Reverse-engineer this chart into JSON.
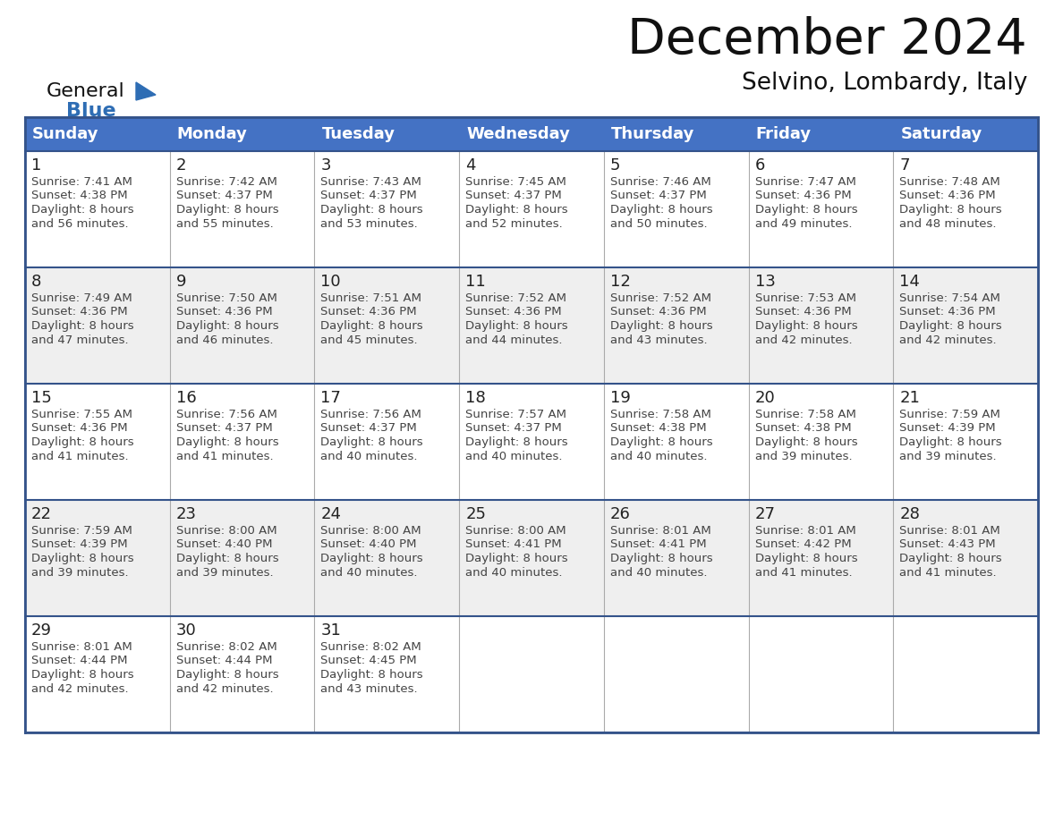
{
  "title": "December 2024",
  "subtitle": "Selvino, Lombardy, Italy",
  "header_color": "#4472C4",
  "header_text_color": "#FFFFFF",
  "cell_bg_color": "#FFFFFF",
  "alt_row_bg": "#EFEFEF",
  "border_color": "#34538A",
  "grid_color": "#AAAAAA",
  "day_headers": [
    "Sunday",
    "Monday",
    "Tuesday",
    "Wednesday",
    "Thursday",
    "Friday",
    "Saturday"
  ],
  "title_color": "#111111",
  "subtitle_color": "#111111",
  "day_number_color": "#222222",
  "cell_text_color": "#444444",
  "logo_general_color": "#111111",
  "logo_blue_color": "#2E6DB4",
  "logo_triangle_color": "#2E6DB4",
  "calendar_data": [
    [
      {
        "day": 1,
        "sunrise": "7:41 AM",
        "sunset": "4:38 PM",
        "daylight_hours": 8,
        "daylight_mins": "56 minutes."
      },
      {
        "day": 2,
        "sunrise": "7:42 AM",
        "sunset": "4:37 PM",
        "daylight_hours": 8,
        "daylight_mins": "55 minutes."
      },
      {
        "day": 3,
        "sunrise": "7:43 AM",
        "sunset": "4:37 PM",
        "daylight_hours": 8,
        "daylight_mins": "53 minutes."
      },
      {
        "day": 4,
        "sunrise": "7:45 AM",
        "sunset": "4:37 PM",
        "daylight_hours": 8,
        "daylight_mins": "52 minutes."
      },
      {
        "day": 5,
        "sunrise": "7:46 AM",
        "sunset": "4:37 PM",
        "daylight_hours": 8,
        "daylight_mins": "50 minutes."
      },
      {
        "day": 6,
        "sunrise": "7:47 AM",
        "sunset": "4:36 PM",
        "daylight_hours": 8,
        "daylight_mins": "49 minutes."
      },
      {
        "day": 7,
        "sunrise": "7:48 AM",
        "sunset": "4:36 PM",
        "daylight_hours": 8,
        "daylight_mins": "48 minutes."
      }
    ],
    [
      {
        "day": 8,
        "sunrise": "7:49 AM",
        "sunset": "4:36 PM",
        "daylight_hours": 8,
        "daylight_mins": "47 minutes."
      },
      {
        "day": 9,
        "sunrise": "7:50 AM",
        "sunset": "4:36 PM",
        "daylight_hours": 8,
        "daylight_mins": "46 minutes."
      },
      {
        "day": 10,
        "sunrise": "7:51 AM",
        "sunset": "4:36 PM",
        "daylight_hours": 8,
        "daylight_mins": "45 minutes."
      },
      {
        "day": 11,
        "sunrise": "7:52 AM",
        "sunset": "4:36 PM",
        "daylight_hours": 8,
        "daylight_mins": "44 minutes."
      },
      {
        "day": 12,
        "sunrise": "7:52 AM",
        "sunset": "4:36 PM",
        "daylight_hours": 8,
        "daylight_mins": "43 minutes."
      },
      {
        "day": 13,
        "sunrise": "7:53 AM",
        "sunset": "4:36 PM",
        "daylight_hours": 8,
        "daylight_mins": "42 minutes."
      },
      {
        "day": 14,
        "sunrise": "7:54 AM",
        "sunset": "4:36 PM",
        "daylight_hours": 8,
        "daylight_mins": "42 minutes."
      }
    ],
    [
      {
        "day": 15,
        "sunrise": "7:55 AM",
        "sunset": "4:36 PM",
        "daylight_hours": 8,
        "daylight_mins": "41 minutes."
      },
      {
        "day": 16,
        "sunrise": "7:56 AM",
        "sunset": "4:37 PM",
        "daylight_hours": 8,
        "daylight_mins": "41 minutes."
      },
      {
        "day": 17,
        "sunrise": "7:56 AM",
        "sunset": "4:37 PM",
        "daylight_hours": 8,
        "daylight_mins": "40 minutes."
      },
      {
        "day": 18,
        "sunrise": "7:57 AM",
        "sunset": "4:37 PM",
        "daylight_hours": 8,
        "daylight_mins": "40 minutes."
      },
      {
        "day": 19,
        "sunrise": "7:58 AM",
        "sunset": "4:38 PM",
        "daylight_hours": 8,
        "daylight_mins": "40 minutes."
      },
      {
        "day": 20,
        "sunrise": "7:58 AM",
        "sunset": "4:38 PM",
        "daylight_hours": 8,
        "daylight_mins": "39 minutes."
      },
      {
        "day": 21,
        "sunrise": "7:59 AM",
        "sunset": "4:39 PM",
        "daylight_hours": 8,
        "daylight_mins": "39 minutes."
      }
    ],
    [
      {
        "day": 22,
        "sunrise": "7:59 AM",
        "sunset": "4:39 PM",
        "daylight_hours": 8,
        "daylight_mins": "39 minutes."
      },
      {
        "day": 23,
        "sunrise": "8:00 AM",
        "sunset": "4:40 PM",
        "daylight_hours": 8,
        "daylight_mins": "39 minutes."
      },
      {
        "day": 24,
        "sunrise": "8:00 AM",
        "sunset": "4:40 PM",
        "daylight_hours": 8,
        "daylight_mins": "40 minutes."
      },
      {
        "day": 25,
        "sunrise": "8:00 AM",
        "sunset": "4:41 PM",
        "daylight_hours": 8,
        "daylight_mins": "40 minutes."
      },
      {
        "day": 26,
        "sunrise": "8:01 AM",
        "sunset": "4:41 PM",
        "daylight_hours": 8,
        "daylight_mins": "40 minutes."
      },
      {
        "day": 27,
        "sunrise": "8:01 AM",
        "sunset": "4:42 PM",
        "daylight_hours": 8,
        "daylight_mins": "41 minutes."
      },
      {
        "day": 28,
        "sunrise": "8:01 AM",
        "sunset": "4:43 PM",
        "daylight_hours": 8,
        "daylight_mins": "41 minutes."
      }
    ],
    [
      {
        "day": 29,
        "sunrise": "8:01 AM",
        "sunset": "4:44 PM",
        "daylight_hours": 8,
        "daylight_mins": "42 minutes."
      },
      {
        "day": 30,
        "sunrise": "8:02 AM",
        "sunset": "4:44 PM",
        "daylight_hours": 8,
        "daylight_mins": "42 minutes."
      },
      {
        "day": 31,
        "sunrise": "8:02 AM",
        "sunset": "4:45 PM",
        "daylight_hours": 8,
        "daylight_mins": "43 minutes."
      },
      null,
      null,
      null,
      null
    ]
  ]
}
